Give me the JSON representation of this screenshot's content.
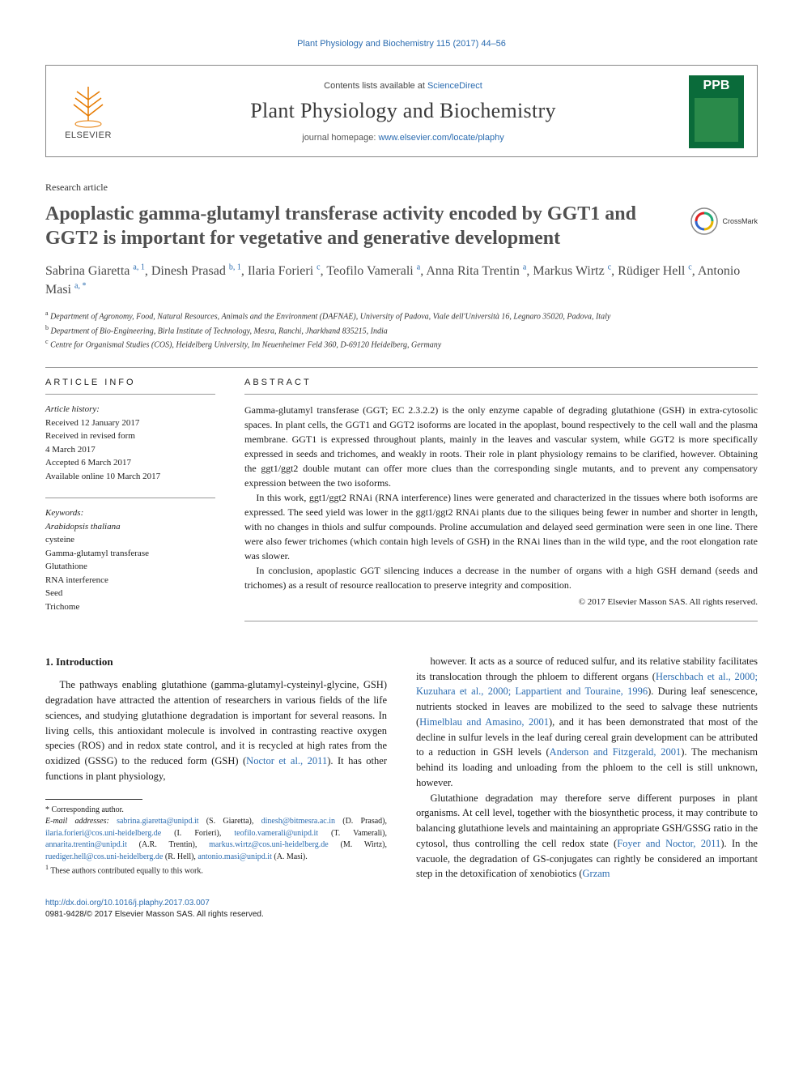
{
  "colors": {
    "link": "#2b6cb0",
    "text": "#1a1a1a",
    "muted": "#505050",
    "rule": "#999999",
    "cover_bg": "#0a6b3a"
  },
  "top_citation": "Plant Physiology and Biochemistry 115 (2017) 44–56",
  "header": {
    "publisher": "ELSEVIER",
    "contents_prefix": "Contents lists available at ",
    "contents_link": "ScienceDirect",
    "journal_name": "Plant Physiology and Biochemistry",
    "homepage_prefix": "journal homepage: ",
    "homepage_url": "www.elsevier.com/locate/plaphy",
    "cover_abbrev": "PPB"
  },
  "article_type": "Research article",
  "title": "Apoplastic gamma-glutamyl transferase activity encoded by GGT1 and GGT2 is important for vegetative and generative development",
  "crossmark_label": "CrossMark",
  "authors": [
    {
      "name": "Sabrina Giaretta",
      "aff": "a, 1"
    },
    {
      "name": "Dinesh Prasad",
      "aff": "b, 1"
    },
    {
      "name": "Ilaria Forieri",
      "aff": "c"
    },
    {
      "name": "Teofilo Vamerali",
      "aff": "a"
    },
    {
      "name": "Anna Rita Trentin",
      "aff": "a"
    },
    {
      "name": "Markus Wirtz",
      "aff": "c"
    },
    {
      "name": "Rüdiger Hell",
      "aff": "c"
    },
    {
      "name": "Antonio Masi",
      "aff": "a, *"
    }
  ],
  "affiliations": [
    {
      "sup": "a",
      "text": "Department of Agronomy, Food, Natural Resources, Animals and the Environment (DAFNAE), University of Padova, Viale dell'Università 16, Legnaro 35020, Padova, Italy"
    },
    {
      "sup": "b",
      "text": "Department of Bio-Engineering, Birla Institute of Technology, Mesra, Ranchi, Jharkhand 835215, India"
    },
    {
      "sup": "c",
      "text": "Centre for Organismal Studies (COS), Heidelberg University, Im Neuenheimer Feld 360, D-69120 Heidelberg, Germany"
    }
  ],
  "info_label": "ARTICLE INFO",
  "abstract_label": "ABSTRACT",
  "history": {
    "label": "Article history:",
    "received": "Received 12 January 2017",
    "revised": "Received in revised form",
    "revised_date": "4 March 2017",
    "accepted": "Accepted 6 March 2017",
    "online": "Available online 10 March 2017"
  },
  "keywords": {
    "label": "Keywords:",
    "items": [
      "Arabidopsis thaliana",
      "cysteine",
      "Gamma-glutamyl transferase",
      "Glutathione",
      "RNA interference",
      "Seed",
      "Trichome"
    ]
  },
  "abstract": {
    "p1": "Gamma-glutamyl transferase (GGT; EC 2.3.2.2) is the only enzyme capable of degrading glutathione (GSH) in extra-cytosolic spaces. In plant cells, the GGT1 and GGT2 isoforms are located in the apoplast, bound respectively to the cell wall and the plasma membrane. GGT1 is expressed throughout plants, mainly in the leaves and vascular system, while GGT2 is more specifically expressed in seeds and trichomes, and weakly in roots. Their role in plant physiology remains to be clarified, however. Obtaining the ggt1/ggt2 double mutant can offer more clues than the corresponding single mutants, and to prevent any compensatory expression between the two isoforms.",
    "p2": "In this work, ggt1/ggt2 RNAi (RNA interference) lines were generated and characterized in the tissues where both isoforms are expressed. The seed yield was lower in the ggt1/ggt2 RNAi plants due to the siliques being fewer in number and shorter in length, with no changes in thiols and sulfur compounds. Proline accumulation and delayed seed germination were seen in one line. There were also fewer trichomes (which contain high levels of GSH) in the RNAi lines than in the wild type, and the root elongation rate was slower.",
    "p3": "In conclusion, apoplastic GGT silencing induces a decrease in the number of organs with a high GSH demand (seeds and trichomes) as a result of resource reallocation to preserve integrity and composition.",
    "copyright": "© 2017 Elsevier Masson SAS. All rights reserved."
  },
  "intro_heading": "1. Introduction",
  "intro_left": "The pathways enabling glutathione (gamma-glutamyl-cysteinyl-glycine, GSH) degradation have attracted the attention of researchers in various fields of the life sciences, and studying glutathione degradation is important for several reasons. In living cells, this antioxidant molecule is involved in contrasting reactive oxygen species (ROS) and in redox state control, and it is recycled at high rates from the oxidized (GSSG) to the reduced form (GSH) (Noctor et al., 2011). It has other functions in plant physiology,",
  "intro_right_p1_a": "however. It acts as a source of reduced sulfur, and its relative stability facilitates its translocation through the phloem to different organs (",
  "intro_right_p1_ref1": "Herschbach et al., 2000; Kuzuhara et al., 2000; Lappartient and Touraine, 1996",
  "intro_right_p1_b": "). During leaf senescence, nutrients stocked in leaves are mobilized to the seed to salvage these nutrients (",
  "intro_right_p1_ref2": "Himelblau and Amasino, 2001",
  "intro_right_p1_c": "), and it has been demonstrated that most of the decline in sulfur levels in the leaf during cereal grain development can be attributed to a reduction in GSH levels (",
  "intro_right_p1_ref3": "Anderson and Fitzgerald, 2001",
  "intro_right_p1_d": "). The mechanism behind its loading and unloading from the phloem to the cell is still unknown, however.",
  "intro_right_p2_a": "Glutathione degradation may therefore serve different purposes in plant organisms. At cell level, together with the biosynthetic process, it may contribute to balancing glutathione levels and maintaining an appropriate GSH/GSSG ratio in the cytosol, thus controlling the cell redox state (",
  "intro_right_p2_ref1": "Foyer and Noctor, 2011",
  "intro_right_p2_b": "). In the vacuole, the degradation of GS-conjugates can rightly be considered an important step in the detoxification of xenobiotics (",
  "intro_right_p2_ref2": "Grzam",
  "footnotes": {
    "corr_label": "* Corresponding author.",
    "email_label": "E-mail addresses:",
    "emails": [
      {
        "addr": "sabrina.giaretta@unipd.it",
        "who": "(S. Giaretta)"
      },
      {
        "addr": "dinesh@bitmesra.ac.in",
        "who": "(D. Prasad)"
      },
      {
        "addr": "ilaria.forieri@cos.uni-heidelberg.de",
        "who": "(I. Forieri)"
      },
      {
        "addr": "teofilo.vamerali@unipd.it",
        "who": "(T. Vamerali)"
      },
      {
        "addr": "annarita.trentin@unipd.it",
        "who": "(A.R. Trentin)"
      },
      {
        "addr": "markus.wirtz@cos.uni-heidelberg.de",
        "who": "(M. Wirtz)"
      },
      {
        "addr": "ruediger.hell@cos.uni-heidelberg.de",
        "who": "(R. Hell)"
      },
      {
        "addr": "antonio.masi@unipd.it",
        "who": "(A. Masi)"
      }
    ],
    "equal": "1 These authors contributed equally to this work."
  },
  "bottom": {
    "doi": "http://dx.doi.org/10.1016/j.plaphy.2017.03.007",
    "issn_line": "0981-9428/© 2017 Elsevier Masson SAS. All rights reserved."
  }
}
